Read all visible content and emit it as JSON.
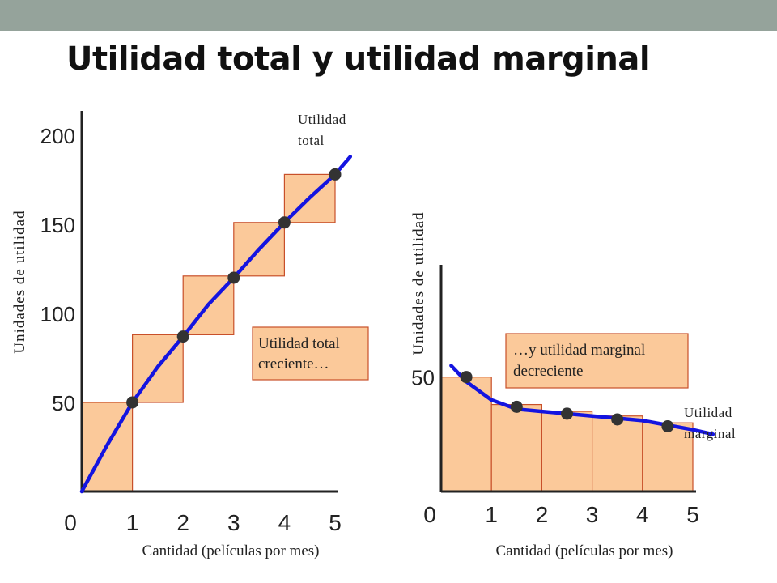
{
  "page": {
    "title": "Utilidad total y utilidad marginal"
  },
  "chart_data": [
    {
      "type": "line",
      "ylabel": "Unidades de utilidad",
      "xlabel": "Cantidad (películas por mes)",
      "x_ticks": [
        "0",
        "1",
        "2",
        "3",
        "4",
        "5"
      ],
      "y_ticks": [
        "50",
        "100",
        "150",
        "200"
      ],
      "xlim": [
        0,
        5
      ],
      "ylim": [
        0,
        200
      ],
      "bars": [
        {
          "x0": 0,
          "x1": 1,
          "y0": 0,
          "y1": 50
        },
        {
          "x0": 1,
          "x1": 2,
          "y0": 50,
          "y1": 88
        },
        {
          "x0": 2,
          "x1": 3,
          "y0": 88,
          "y1": 121
        },
        {
          "x0": 3,
          "x1": 4,
          "y0": 121,
          "y1": 151
        },
        {
          "x0": 4,
          "x1": 5,
          "y0": 151,
          "y1": 178
        }
      ],
      "series": [
        {
          "name": "Utilidad total",
          "x": [
            0,
            0.5,
            1,
            1.5,
            2,
            2.5,
            3,
            3.5,
            4,
            4.5,
            5,
            5.3
          ],
          "y": [
            0,
            26,
            50,
            70,
            87,
            105,
            120,
            136,
            151,
            165,
            178,
            188
          ]
        }
      ],
      "points": {
        "x": [
          1,
          2,
          3,
          4,
          5
        ],
        "y": [
          50,
          87,
          120,
          151,
          178
        ]
      },
      "series_label": [
        "Utilidad",
        "total"
      ],
      "annotation": [
        "Utilidad total",
        "creciente…"
      ]
    },
    {
      "type": "line",
      "ylabel": "Unidades de utilidad",
      "xlabel": "Cantidad (películas por mes)",
      "x_ticks": [
        "0",
        "1",
        "2",
        "3",
        "4",
        "5"
      ],
      "y_ticks": [
        "50"
      ],
      "xlim": [
        0,
        5
      ],
      "ylim": [
        0,
        75
      ],
      "bars": [
        {
          "x0": 0,
          "x1": 1,
          "y0": 0,
          "y1": 50
        },
        {
          "x0": 1,
          "x1": 2,
          "y0": 0,
          "y1": 38
        },
        {
          "x0": 2,
          "x1": 3,
          "y0": 0,
          "y1": 35
        },
        {
          "x0": 3,
          "x1": 4,
          "y0": 0,
          "y1": 33
        },
        {
          "x0": 4,
          "x1": 5,
          "y0": 0,
          "y1": 30
        }
      ],
      "series": [
        {
          "name": "Utilidad marginal",
          "x": [
            0.2,
            0.5,
            1,
            1.5,
            2,
            2.5,
            3,
            3.5,
            4,
            4.5,
            5,
            5.4
          ],
          "y": [
            55,
            48,
            40,
            36,
            35,
            34,
            33,
            32,
            31,
            29,
            27,
            25
          ]
        }
      ],
      "points": {
        "x": [
          0.5,
          1.5,
          2.5,
          3.5,
          4.5
        ],
        "y": [
          50,
          37,
          34,
          31.5,
          28.5
        ]
      },
      "series_label": [
        "Utilidad",
        "marginal"
      ],
      "annotation": [
        "…y utilidad marginal",
        "decreciente"
      ]
    }
  ],
  "colors": {
    "bar_fill": "#fbc99a",
    "bar_stroke": "#c8502a",
    "curve": "#1414e0",
    "point": "#333333",
    "axis": "#222222",
    "topbar": "#95a39b"
  }
}
